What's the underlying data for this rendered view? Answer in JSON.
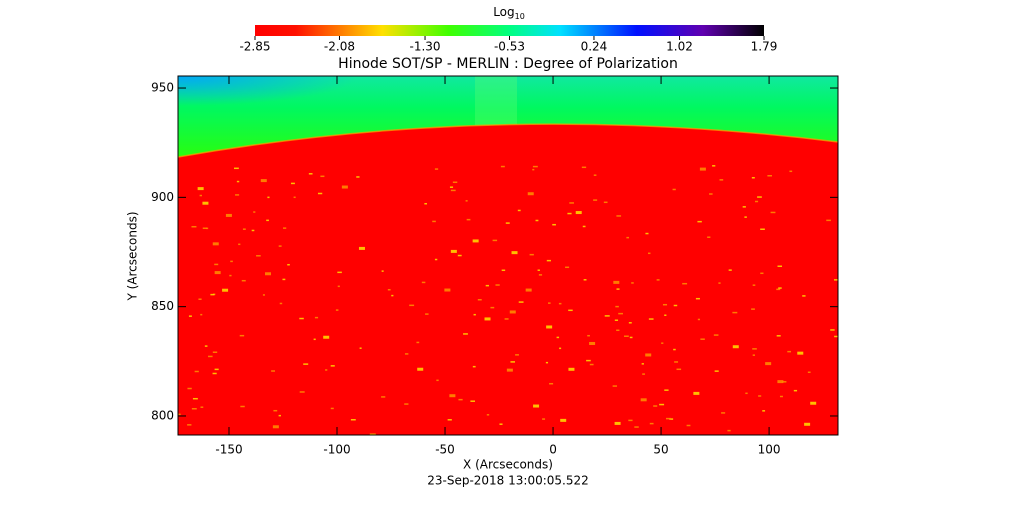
{
  "chart_data": {
    "type": "image",
    "title": "Hinode SOT/SP - MERLIN : Degree of Polarization",
    "colorbar_label": "Log",
    "colorbar_label_subscript": "10",
    "zlim": [
      -2.85,
      1.79
    ],
    "zticks": [
      -2.85,
      -2.08,
      {
        "value": -1.3,
        "label": "-1.30"
      },
      -0.53,
      0.24,
      1.02,
      1.79
    ],
    "xlabel": "X (Arcseconds)",
    "ylabel": "Y (Arcseconds)",
    "xlim": [
      -173.6,
      131.9
    ],
    "xticks": [
      -150,
      -100,
      -50,
      0,
      50,
      100
    ],
    "ylim": [
      791.3,
      955.5
    ],
    "yticks": [
      800,
      850,
      900,
      950
    ],
    "date": "23-Sep-2018 13:00:05.522"
  }
}
